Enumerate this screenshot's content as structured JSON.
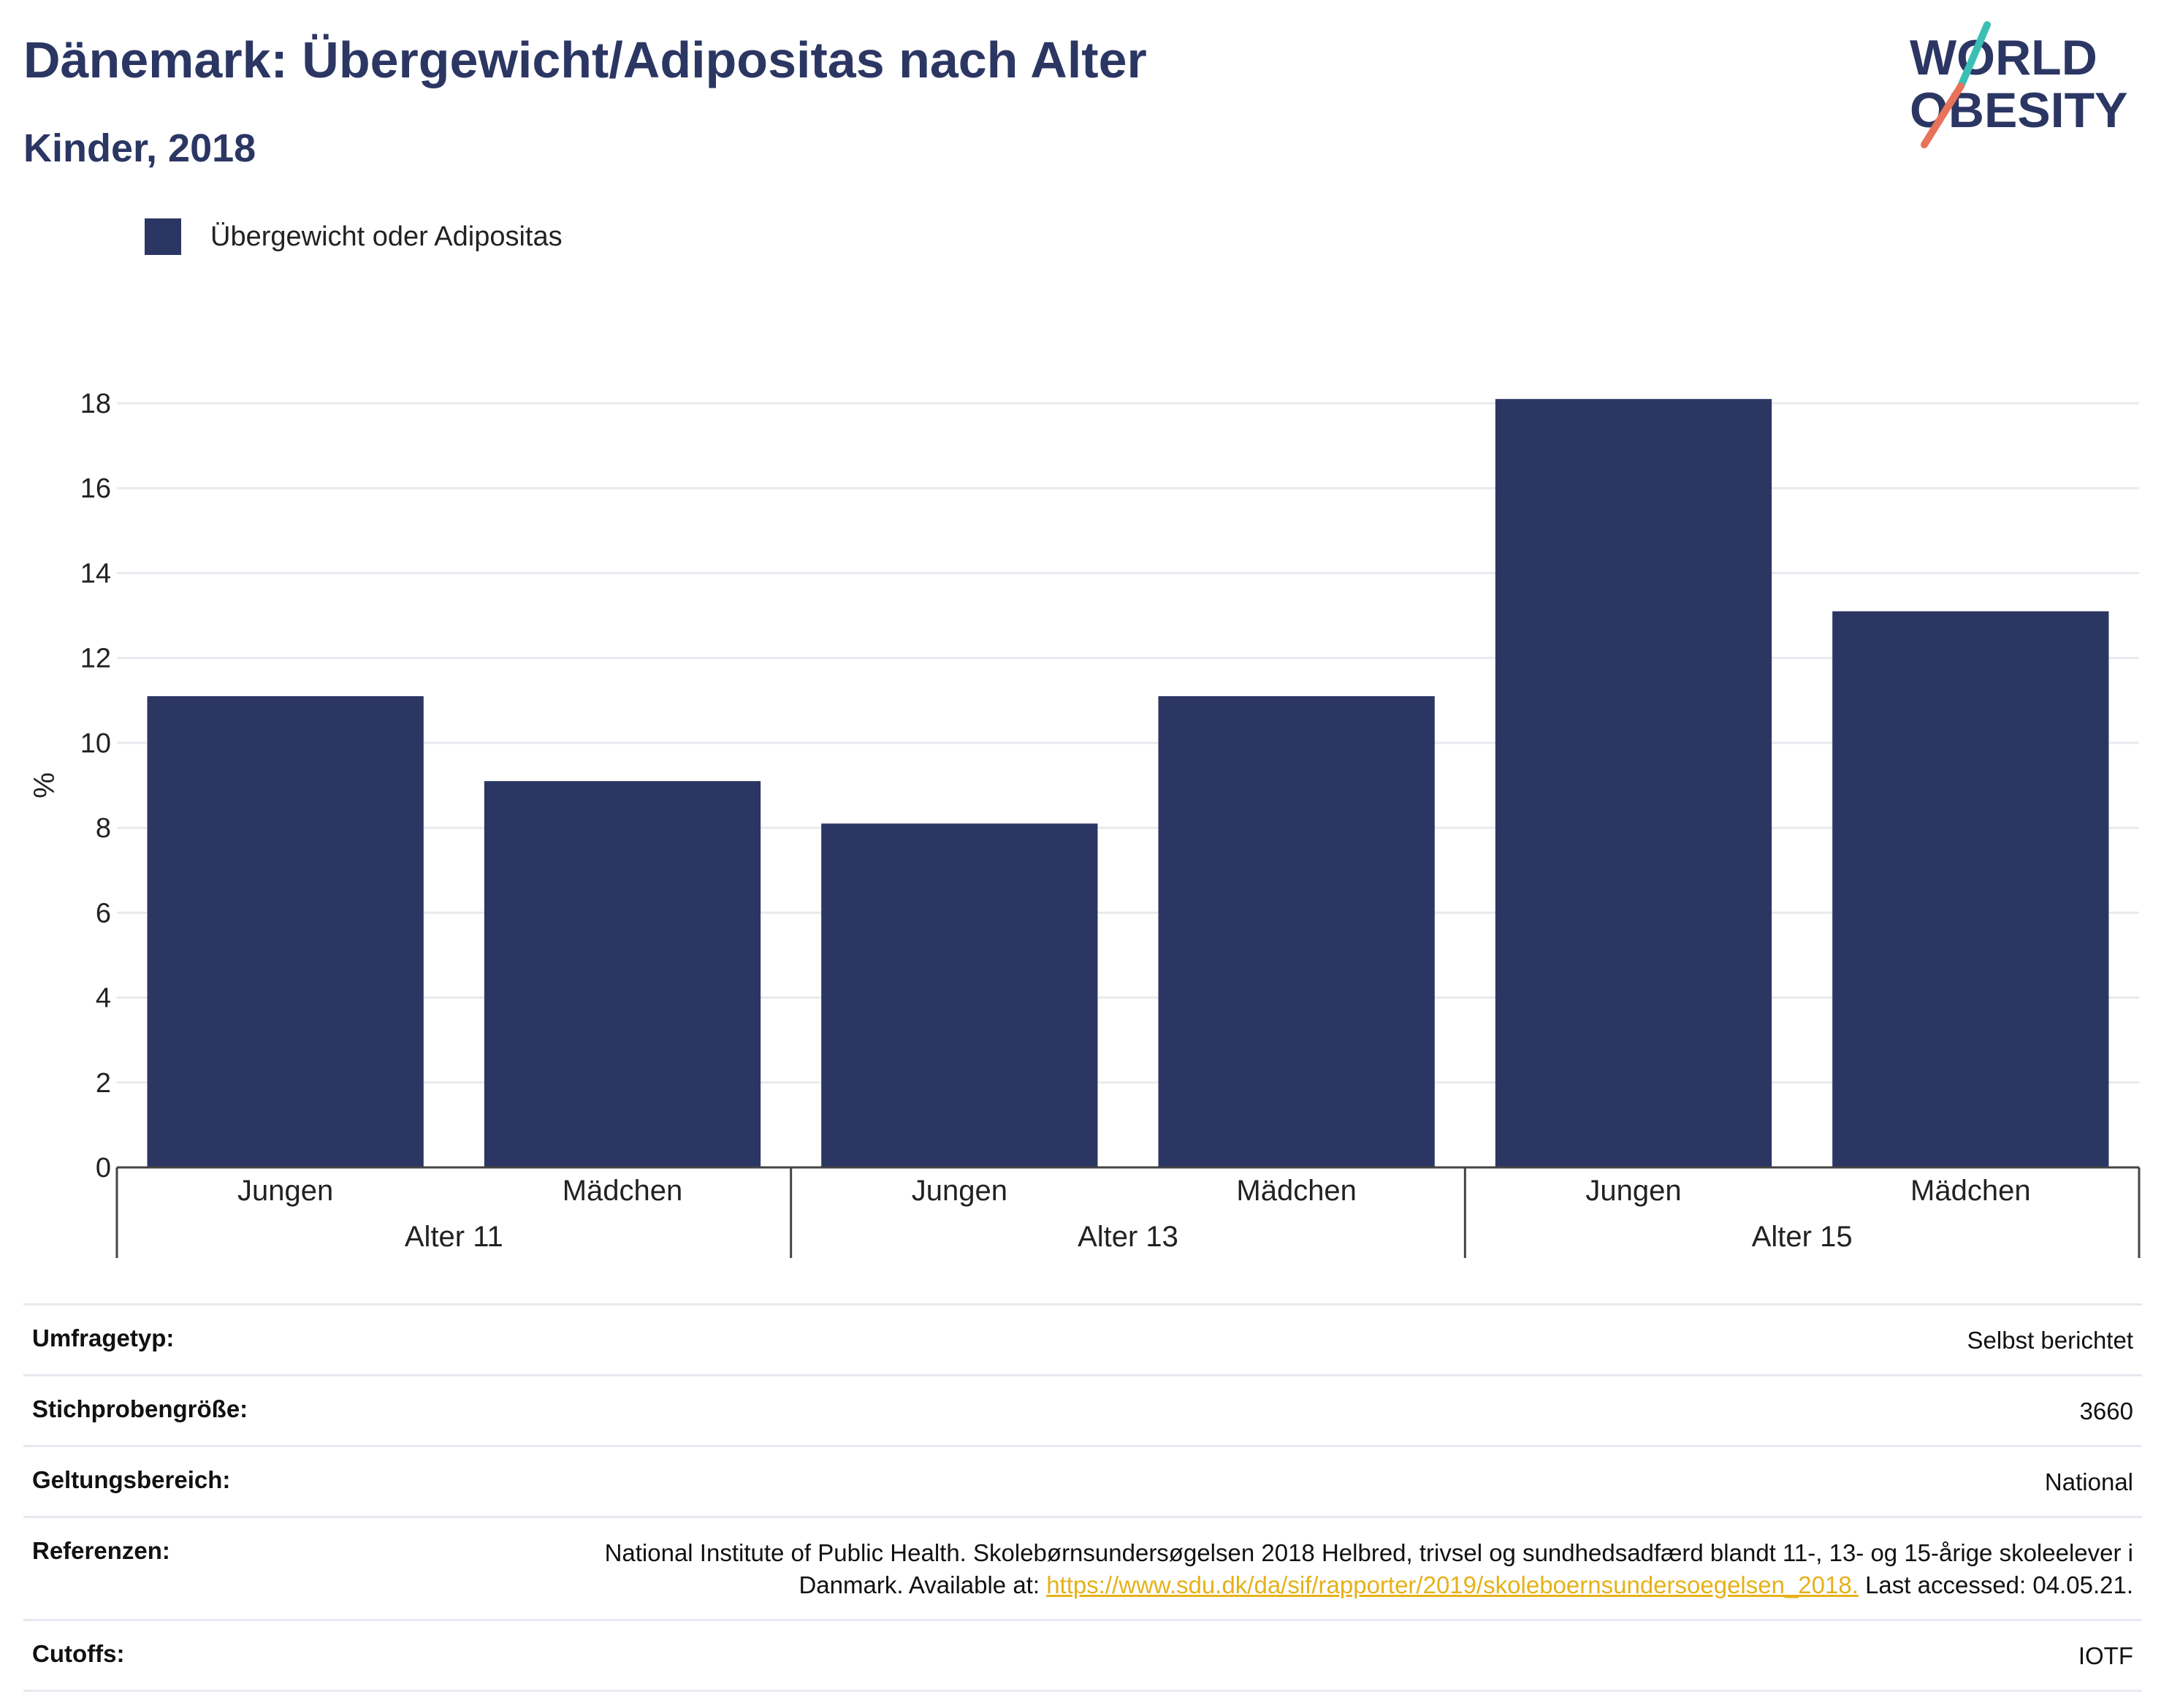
{
  "header": {
    "title": "Dänemark: Übergewicht/Adipositas nach Alter",
    "subtitle": "Kinder, 2018"
  },
  "logo": {
    "line1": "WORLD",
    "line2": "OBESITY",
    "colors": {
      "text": "#2b3663",
      "slash_top": "#3bbfb5",
      "slash_bottom": "#e8735a"
    }
  },
  "chart_data": {
    "type": "bar",
    "title": "Dänemark: Übergewicht/Adipositas nach Alter",
    "subtitle": "Kinder, 2018",
    "ylabel": "%",
    "ylim": [
      0,
      18
    ],
    "yticks": [
      0,
      2,
      4,
      6,
      8,
      10,
      12,
      14,
      16,
      18
    ],
    "groups": [
      {
        "label": "Alter 11",
        "categories": [
          "Jungen",
          "Mädchen"
        ],
        "values": [
          11.1,
          9.1
        ]
      },
      {
        "label": "Alter 13",
        "categories": [
          "Jungen",
          "Mädchen"
        ],
        "values": [
          8.1,
          11.1
        ]
      },
      {
        "label": "Alter 15",
        "categories": [
          "Jungen",
          "Mädchen"
        ],
        "values": [
          18.1,
          13.1
        ]
      }
    ],
    "series": [
      {
        "name": "Übergewicht oder Adipositas",
        "color": "#2b3663"
      }
    ],
    "legend_position": "top-left",
    "grid": true
  },
  "info": {
    "survey_type": {
      "label": "Umfragetyp:",
      "value": "Selbst berichtet"
    },
    "sample_size": {
      "label": "Stichprobengröße:",
      "value": "3660"
    },
    "scope": {
      "label": "Geltungsbereich:",
      "value": "National"
    },
    "references": {
      "label": "Referenzen:",
      "text_before": "National Institute of Public Health. Skolebørnsundersøgelsen 2018 Helbred, trivsel og sundhedsadfærd blandt 11-, 13- og 15-årige skoleelever i Danmark. Available at: ",
      "link": "https://www.sdu.dk/da/sif/rapporter/2019/skoleboernsundersoegelsen_2018.",
      "text_after": " Last accessed: 04.05.21."
    },
    "cutoffs": {
      "label": "Cutoffs:",
      "value": "IOTF"
    }
  }
}
